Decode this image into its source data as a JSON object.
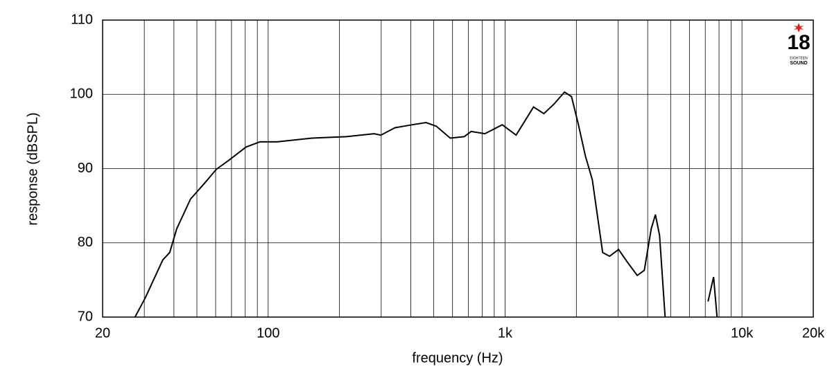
{
  "chart_data": {
    "type": "line",
    "xlabel": "frequency (Hz)",
    "ylabel": "response (dBSPL)",
    "log_x": true,
    "grid": true,
    "color": "#000000",
    "xlim": [
      20,
      20000
    ],
    "ylim": [
      70,
      110
    ],
    "xticks": [
      20,
      100,
      {
        "value": 1000,
        "label": "1k"
      },
      {
        "value": 10000,
        "label": "10k"
      },
      {
        "value": 20000,
        "label": "20k"
      }
    ],
    "xminor_grid": [
      30,
      40,
      50,
      60,
      70,
      80,
      90,
      200,
      300,
      400,
      500,
      600,
      700,
      800,
      900,
      2000,
      3000,
      4000,
      5000,
      6000,
      7000,
      8000,
      9000
    ],
    "yticks": [
      70,
      80,
      90,
      100,
      110
    ],
    "x": [
      27.4,
      30.3,
      35.9,
      38.4,
      41.1,
      47,
      53.8,
      60.4,
      68.1,
      80.6,
      92.2,
      109,
      153,
      214,
      280,
      299,
      343,
      406,
      464,
      513,
      587,
      672,
      719,
      822,
      973,
      1113,
      1318,
      1458,
      1611,
      1782,
      1908,
      2041,
      2183,
      2335,
      2582,
      2762,
      3014,
      3267,
      3614,
      3870,
      4140,
      4310,
      4490,
      4737,
      6950,
      7190,
      7590,
      7850
    ],
    "values": [
      70,
      72.6,
      77.7,
      78.7,
      81.9,
      85.9,
      88,
      89.9,
      91.1,
      92.9,
      93.6,
      93.6,
      94.1,
      94.3,
      94.7,
      94.5,
      95.5,
      95.9,
      96.2,
      95.7,
      94.1,
      94.3,
      95,
      94.7,
      95.9,
      94.5,
      98.3,
      97.4,
      98.7,
      100.3,
      99.7,
      95.9,
      91.7,
      88.5,
      78.7,
      78.2,
      79.1,
      77.5,
      75.6,
      76.3,
      81.9,
      83.8,
      81,
      70,
      null,
      72.1,
      75.4,
      70
    ],
    "logo": {
      "number": "18",
      "line1": "EIGHTEEN",
      "line2": "SOUND"
    }
  }
}
